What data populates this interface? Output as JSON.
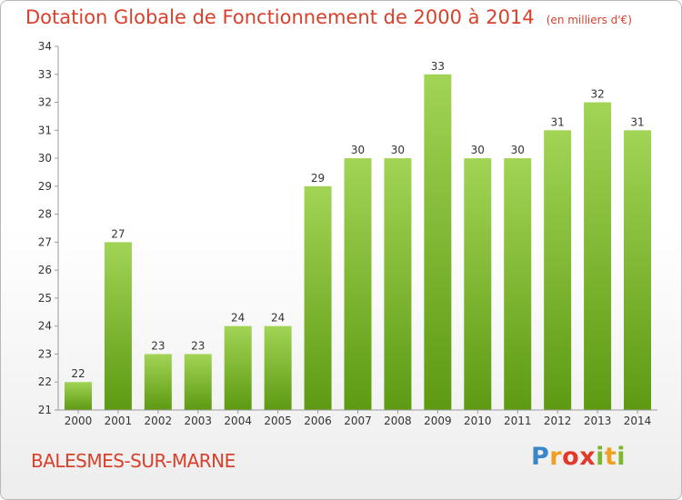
{
  "header": {
    "title": "Dotation Globale de Fonctionnement de 2000 à 2014",
    "unit": "(en milliers d'€)"
  },
  "footer": {
    "commune": "BALESMES-SUR-MARNE",
    "logo": "Proxiti"
  },
  "colors": {
    "title": "#d9402b",
    "bar_top": "#a2d455",
    "bar_bottom": "#5d9a12"
  },
  "chart_data": {
    "type": "bar",
    "title": "Dotation Globale de Fonctionnement de 2000 à 2014",
    "subtitle": "(en milliers d'€)",
    "xlabel": "",
    "ylabel": "",
    "categories": [
      "2000",
      "2001",
      "2002",
      "2003",
      "2004",
      "2005",
      "2006",
      "2007",
      "2008",
      "2009",
      "2010",
      "2011",
      "2012",
      "2013",
      "2014"
    ],
    "values": [
      22,
      27,
      23,
      23,
      24,
      24,
      29,
      30,
      30,
      33,
      30,
      30,
      31,
      32,
      31
    ],
    "ylim": [
      21,
      34
    ],
    "yticks": [
      21,
      22,
      23,
      24,
      25,
      26,
      27,
      28,
      29,
      30,
      31,
      32,
      33,
      34
    ],
    "grid": false,
    "legend": "none",
    "data_labels": true
  }
}
